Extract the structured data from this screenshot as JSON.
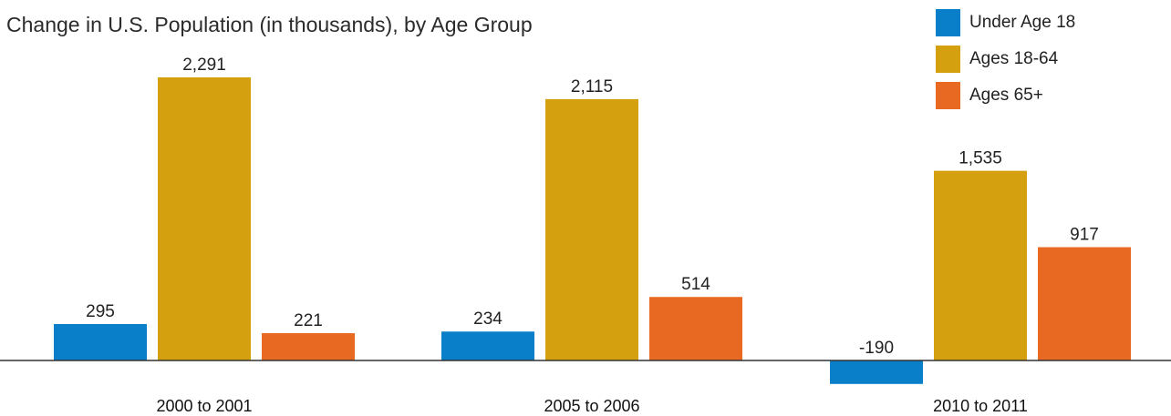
{
  "chart_data": {
    "type": "bar",
    "title": "Change in U.S. Population (in thousands), by Age Group",
    "categories": [
      "2000 to 2001",
      "2005 to 2006",
      "2010 to 2011"
    ],
    "series": [
      {
        "name": "Under Age 18",
        "color": "#0a7fc9",
        "values": [
          295,
          234,
          -190
        ],
        "labels": [
          "295",
          "234",
          "-190"
        ]
      },
      {
        "name": "Ages 18-64",
        "color": "#d4a010",
        "values": [
          2291,
          2115,
          1535
        ],
        "labels": [
          "2,291",
          "2,115",
          "1,535"
        ]
      },
      {
        "name": "Ages 65+",
        "color": "#e86a22",
        "values": [
          221,
          514,
          917
        ],
        "labels": [
          "221",
          "514",
          "917"
        ]
      }
    ],
    "grid": false,
    "legend_position": "top-right"
  }
}
